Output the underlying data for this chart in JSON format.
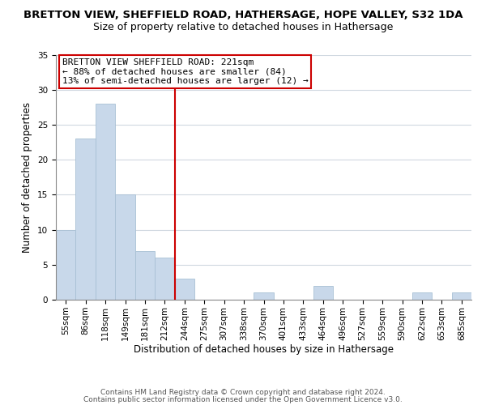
{
  "title": "BRETTON VIEW, SHEFFIELD ROAD, HATHERSAGE, HOPE VALLEY, S32 1DA",
  "subtitle": "Size of property relative to detached houses in Hathersage",
  "xlabel": "Distribution of detached houses by size in Hathersage",
  "ylabel": "Number of detached properties",
  "bar_color": "#c8d8ea",
  "bar_edge_color": "#a8c0d4",
  "bins": [
    "55sqm",
    "86sqm",
    "118sqm",
    "149sqm",
    "181sqm",
    "212sqm",
    "244sqm",
    "275sqm",
    "307sqm",
    "338sqm",
    "370sqm",
    "401sqm",
    "433sqm",
    "464sqm",
    "496sqm",
    "527sqm",
    "559sqm",
    "590sqm",
    "622sqm",
    "653sqm",
    "685sqm"
  ],
  "values": [
    10,
    23,
    28,
    15,
    7,
    6,
    3,
    0,
    0,
    0,
    1,
    0,
    0,
    2,
    0,
    0,
    0,
    0,
    1,
    0,
    1
  ],
  "ylim": [
    0,
    35
  ],
  "vline_x": 5.5,
  "annotation_line1": "BRETTON VIEW SHEFFIELD ROAD: 221sqm",
  "annotation_line2": "← 88% of detached houses are smaller (84)",
  "annotation_line3": "13% of semi-detached houses are larger (12) →",
  "annotation_box_color": "#ffffff",
  "annotation_box_edge": "#cc0000",
  "vline_color": "#cc0000",
  "footer1": "Contains HM Land Registry data © Crown copyright and database right 2024.",
  "footer2": "Contains public sector information licensed under the Open Government Licence v3.0.",
  "title_fontsize": 9.5,
  "subtitle_fontsize": 9,
  "axis_label_fontsize": 8.5,
  "tick_fontsize": 7.5,
  "annotation_fontsize": 8,
  "footer_fontsize": 6.5
}
